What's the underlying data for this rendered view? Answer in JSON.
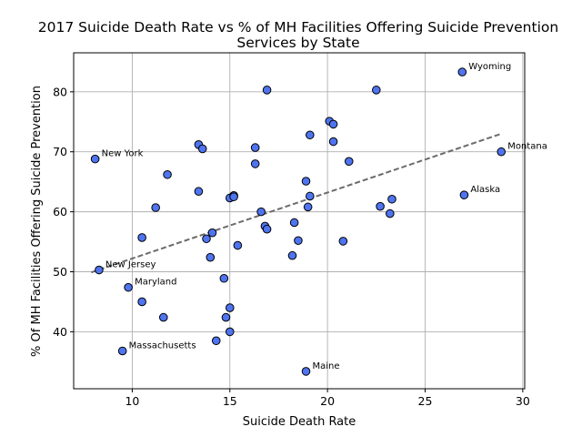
{
  "chart_data": {
    "type": "scatter",
    "title_lines": [
      "2017 Suicide Death Rate vs % of MH Facilities Offering Suicide Prevention",
      "Services by State"
    ],
    "xlabel": "Suicide Death Rate",
    "ylabel": "% Of MH Facilities Offering Suicide Prevention",
    "xlim": [
      7,
      30.1
    ],
    "ylim": [
      30.5,
      86.5
    ],
    "xticks": [
      10,
      15,
      20,
      25,
      30
    ],
    "yticks": [
      40,
      50,
      60,
      70,
      80
    ],
    "grid": true,
    "points": [
      {
        "x": 8.1,
        "y": 68.8,
        "label": "New York"
      },
      {
        "x": 8.3,
        "y": 50.3,
        "label": "New Jersey"
      },
      {
        "x": 9.5,
        "y": 36.8,
        "label": "Massachusetts"
      },
      {
        "x": 9.8,
        "y": 47.4,
        "label": "Maryland"
      },
      {
        "x": 10.5,
        "y": 55.7
      },
      {
        "x": 10.5,
        "y": 45.0
      },
      {
        "x": 11.2,
        "y": 60.7
      },
      {
        "x": 11.6,
        "y": 42.4
      },
      {
        "x": 11.8,
        "y": 66.2
      },
      {
        "x": 13.4,
        "y": 71.2
      },
      {
        "x": 13.4,
        "y": 63.4
      },
      {
        "x": 13.6,
        "y": 70.5
      },
      {
        "x": 13.8,
        "y": 55.5
      },
      {
        "x": 14.0,
        "y": 52.4
      },
      {
        "x": 14.1,
        "y": 56.5
      },
      {
        "x": 14.3,
        "y": 38.5
      },
      {
        "x": 14.7,
        "y": 48.9
      },
      {
        "x": 14.8,
        "y": 42.4
      },
      {
        "x": 15.0,
        "y": 62.3
      },
      {
        "x": 15.0,
        "y": 44.0
      },
      {
        "x": 15.0,
        "y": 40.0
      },
      {
        "x": 15.2,
        "y": 62.7
      },
      {
        "x": 15.2,
        "y": 62.5
      },
      {
        "x": 15.4,
        "y": 54.4
      },
      {
        "x": 16.3,
        "y": 70.7
      },
      {
        "x": 16.3,
        "y": 68.0
      },
      {
        "x": 16.6,
        "y": 60.0
      },
      {
        "x": 16.8,
        "y": 57.6
      },
      {
        "x": 16.9,
        "y": 80.3
      },
      {
        "x": 16.9,
        "y": 57.1
      },
      {
        "x": 18.2,
        "y": 52.7
      },
      {
        "x": 18.3,
        "y": 58.2
      },
      {
        "x": 18.5,
        "y": 55.2
      },
      {
        "x": 18.9,
        "y": 65.1
      },
      {
        "x": 18.9,
        "y": 33.4,
        "label": "Maine"
      },
      {
        "x": 19.0,
        "y": 60.8
      },
      {
        "x": 19.1,
        "y": 72.8
      },
      {
        "x": 19.1,
        "y": 62.6
      },
      {
        "x": 20.1,
        "y": 75.1
      },
      {
        "x": 20.3,
        "y": 74.6
      },
      {
        "x": 20.3,
        "y": 71.7
      },
      {
        "x": 20.8,
        "y": 55.1
      },
      {
        "x": 21.1,
        "y": 68.4
      },
      {
        "x": 22.5,
        "y": 80.3
      },
      {
        "x": 22.7,
        "y": 60.9
      },
      {
        "x": 23.2,
        "y": 59.7
      },
      {
        "x": 23.3,
        "y": 62.1
      },
      {
        "x": 26.9,
        "y": 83.3,
        "label": "Wyoming"
      },
      {
        "x": 27.0,
        "y": 62.8,
        "label": "Alaska"
      },
      {
        "x": 28.9,
        "y": 70.0,
        "label": "Montana"
      }
    ],
    "trendline": {
      "style": "dashed",
      "color": "#6b6b6b",
      "x": [
        7.9,
        28.9
      ],
      "y": [
        49.9,
        73.0
      ]
    }
  }
}
